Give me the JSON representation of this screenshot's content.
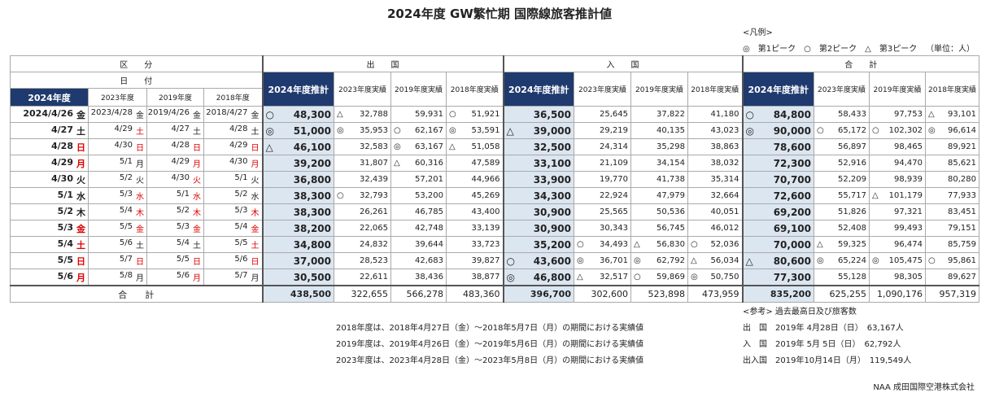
{
  "title": "2024年度 GW繁忙期 国際線旅客推計値",
  "legend": {
    "label": "<凡例>",
    "items": "◎　第1ピーク　○　第2ピーク　△　第3ピーク",
    "unit": "（単位：人）"
  },
  "table": {
    "header": {
      "section": "区　　分",
      "date": "日　　付",
      "years": [
        "2024年度",
        "2023年度",
        "2019年度",
        "2018年度"
      ],
      "groups": [
        "出　　国",
        "入　　国",
        "合　　計"
      ],
      "columns": [
        "2024年度推計",
        "2023年度実績",
        "2019年度実績",
        "2018年度実績"
      ]
    },
    "rows": [
      {
        "dates": [
          {
            "date": "2024/4/26",
            "day": "金"
          },
          {
            "date": "2023/4/28",
            "day": "金"
          },
          {
            "date": "2019/4/26",
            "day": "金"
          },
          {
            "date": "2018/4/27",
            "day": "金"
          }
        ],
        "values": [
          {
            "mark": "○",
            "value": "48,300"
          },
          {
            "mark": "△",
            "value": "32,788"
          },
          {
            "value": "59,931"
          },
          {
            "mark": "○",
            "value": "51,921"
          },
          {
            "value": "36,500"
          },
          {
            "value": "25,645"
          },
          {
            "value": "37,822"
          },
          {
            "value": "41,180"
          },
          {
            "mark": "○",
            "value": "84,800"
          },
          {
            "value": "58,433"
          },
          {
            "value": "97,753"
          },
          {
            "mark": "△",
            "value": "93,101"
          }
        ]
      },
      {
        "dates": [
          {
            "date": "4/27",
            "day": "土"
          },
          {
            "date": "4/29",
            "day": "土",
            "holiday": true
          },
          {
            "date": "4/27",
            "day": "土"
          },
          {
            "date": "4/28",
            "day": "土"
          }
        ],
        "values": [
          {
            "mark": "◎",
            "value": "51,000"
          },
          {
            "mark": "◎",
            "value": "35,953"
          },
          {
            "mark": "○",
            "value": "62,167"
          },
          {
            "mark": "◎",
            "value": "53,591"
          },
          {
            "mark": "△",
            "value": "39,000"
          },
          {
            "value": "29,219"
          },
          {
            "value": "40,135"
          },
          {
            "value": "43,023"
          },
          {
            "mark": "◎",
            "value": "90,000"
          },
          {
            "mark": "○",
            "value": "65,172"
          },
          {
            "mark": "○",
            "value": "102,302"
          },
          {
            "mark": "◎",
            "value": "96,614"
          }
        ]
      },
      {
        "dates": [
          {
            "date": "4/28",
            "day": "日",
            "holiday": true
          },
          {
            "date": "4/30",
            "day": "日",
            "holiday": true
          },
          {
            "date": "4/28",
            "day": "日",
            "holiday": true
          },
          {
            "date": "4/29",
            "day": "日",
            "holiday": true
          }
        ],
        "values": [
          {
            "mark": "△",
            "value": "46,100"
          },
          {
            "value": "32,583"
          },
          {
            "mark": "◎",
            "value": "63,167"
          },
          {
            "mark": "△",
            "value": "51,058"
          },
          {
            "value": "32,500"
          },
          {
            "value": "24,314"
          },
          {
            "value": "35,298"
          },
          {
            "value": "38,863"
          },
          {
            "value": "78,600"
          },
          {
            "value": "56,897"
          },
          {
            "value": "98,465"
          },
          {
            "value": "89,921"
          }
        ]
      },
      {
        "dates": [
          {
            "date": "4/29",
            "day": "月",
            "holiday": true
          },
          {
            "date": "5/1",
            "day": "月"
          },
          {
            "date": "4/29",
            "day": "月",
            "holiday": true
          },
          {
            "date": "4/30",
            "day": "月",
            "holiday": true
          }
        ],
        "values": [
          {
            "value": "39,200"
          },
          {
            "value": "31,807"
          },
          {
            "mark": "△",
            "value": "60,316"
          },
          {
            "value": "47,589"
          },
          {
            "value": "33,100"
          },
          {
            "value": "21,109"
          },
          {
            "value": "34,154"
          },
          {
            "value": "38,032"
          },
          {
            "value": "72,300"
          },
          {
            "value": "52,916"
          },
          {
            "value": "94,470"
          },
          {
            "value": "85,621"
          }
        ]
      },
      {
        "dates": [
          {
            "date": "4/30",
            "day": "火"
          },
          {
            "date": "5/2",
            "day": "火"
          },
          {
            "date": "4/30",
            "day": "火",
            "holiday": true
          },
          {
            "date": "5/1",
            "day": "火"
          }
        ],
        "values": [
          {
            "value": "36,800"
          },
          {
            "value": "32,439"
          },
          {
            "value": "57,201"
          },
          {
            "value": "44,966"
          },
          {
            "value": "33,900"
          },
          {
            "value": "19,770"
          },
          {
            "value": "41,738"
          },
          {
            "value": "35,314"
          },
          {
            "value": "70,700"
          },
          {
            "value": "52,209"
          },
          {
            "value": "98,939"
          },
          {
            "value": "80,280"
          }
        ]
      },
      {
        "dates": [
          {
            "date": "5/1",
            "day": "水"
          },
          {
            "date": "5/3",
            "day": "水",
            "holiday": true
          },
          {
            "date": "5/1",
            "day": "水",
            "holiday": true
          },
          {
            "date": "5/2",
            "day": "水"
          }
        ],
        "values": [
          {
            "value": "38,300"
          },
          {
            "mark": "○",
            "value": "32,793"
          },
          {
            "value": "53,200"
          },
          {
            "value": "45,269"
          },
          {
            "value": "34,300"
          },
          {
            "value": "22,924"
          },
          {
            "value": "47,979"
          },
          {
            "value": "32,664"
          },
          {
            "value": "72,600"
          },
          {
            "value": "55,717"
          },
          {
            "mark": "△",
            "value": "101,179"
          },
          {
            "value": "77,933"
          }
        ]
      },
      {
        "dates": [
          {
            "date": "5/2",
            "day": "木"
          },
          {
            "date": "5/4",
            "day": "木",
            "holiday": true
          },
          {
            "date": "5/2",
            "day": "木",
            "holiday": true
          },
          {
            "date": "5/3",
            "day": "木",
            "holiday": true
          }
        ],
        "values": [
          {
            "value": "38,300"
          },
          {
            "value": "26,261"
          },
          {
            "value": "46,785"
          },
          {
            "value": "43,400"
          },
          {
            "value": "30,900"
          },
          {
            "value": "25,565"
          },
          {
            "value": "50,536"
          },
          {
            "value": "40,051"
          },
          {
            "value": "69,200"
          },
          {
            "value": "51,826"
          },
          {
            "value": "97,321"
          },
          {
            "value": "83,451"
          }
        ]
      },
      {
        "dates": [
          {
            "date": "5/3",
            "day": "金",
            "holiday": true
          },
          {
            "date": "5/5",
            "day": "金",
            "holiday": true
          },
          {
            "date": "5/3",
            "day": "金",
            "holiday": true
          },
          {
            "date": "5/4",
            "day": "金",
            "holiday": true
          }
        ],
        "values": [
          {
            "value": "38,200"
          },
          {
            "value": "22,065"
          },
          {
            "value": "42,748"
          },
          {
            "value": "33,139"
          },
          {
            "value": "30,900"
          },
          {
            "value": "30,343"
          },
          {
            "value": "56,745"
          },
          {
            "value": "46,012"
          },
          {
            "value": "69,100"
          },
          {
            "value": "52,408"
          },
          {
            "value": "99,493"
          },
          {
            "value": "79,151"
          }
        ]
      },
      {
        "dates": [
          {
            "date": "5/4",
            "day": "土",
            "holiday": true
          },
          {
            "date": "5/6",
            "day": "土"
          },
          {
            "date": "5/4",
            "day": "土"
          },
          {
            "date": "5/5",
            "day": "土",
            "holiday": true
          }
        ],
        "values": [
          {
            "value": "34,800"
          },
          {
            "value": "24,832"
          },
          {
            "value": "39,644"
          },
          {
            "value": "33,723"
          },
          {
            "value": "35,200"
          },
          {
            "mark": "○",
            "value": "34,493"
          },
          {
            "mark": "△",
            "value": "56,830"
          },
          {
            "mark": "○",
            "value": "52,036"
          },
          {
            "value": "70,000"
          },
          {
            "mark": "△",
            "value": "59,325"
          },
          {
            "value": "96,474"
          },
          {
            "value": "85,759"
          }
        ]
      },
      {
        "dates": [
          {
            "date": "5/5",
            "day": "日",
            "holiday": true
          },
          {
            "date": "5/7",
            "day": "日",
            "holiday": true
          },
          {
            "date": "5/5",
            "day": "日",
            "holiday": true
          },
          {
            "date": "5/6",
            "day": "日",
            "holiday": true
          }
        ],
        "values": [
          {
            "value": "37,000"
          },
          {
            "value": "28,523"
          },
          {
            "value": "42,683"
          },
          {
            "value": "39,827"
          },
          {
            "mark": "○",
            "value": "43,600"
          },
          {
            "mark": "◎",
            "value": "36,701"
          },
          {
            "mark": "◎",
            "value": "62,792"
          },
          {
            "mark": "△",
            "value": "56,034"
          },
          {
            "mark": "△",
            "value": "80,600"
          },
          {
            "mark": "◎",
            "value": "65,224"
          },
          {
            "mark": "◎",
            "value": "105,475"
          },
          {
            "mark": "○",
            "value": "95,861"
          }
        ]
      },
      {
        "dates": [
          {
            "date": "5/6",
            "day": "月",
            "holiday": true
          },
          {
            "date": "5/8",
            "day": "月"
          },
          {
            "date": "5/6",
            "day": "月",
            "holiday": true
          },
          {
            "date": "5/7",
            "day": "月"
          }
        ],
        "values": [
          {
            "value": "30,500"
          },
          {
            "value": "22,611"
          },
          {
            "value": "38,436"
          },
          {
            "value": "38,877"
          },
          {
            "mark": "◎",
            "value": "46,800"
          },
          {
            "mark": "△",
            "value": "32,517"
          },
          {
            "mark": "○",
            "value": "59,869"
          },
          {
            "mark": "◎",
            "value": "50,750"
          },
          {
            "value": "77,300"
          },
          {
            "value": "55,128"
          },
          {
            "value": "98,305"
          },
          {
            "value": "89,627"
          }
        ]
      }
    ],
    "total": {
      "label": "合　　計",
      "values": [
        "438,500",
        "322,655",
        "566,278",
        "483,360",
        "396,700",
        "302,600",
        "523,898",
        "473,959",
        "835,200",
        "625,255",
        "1,090,176",
        "957,319"
      ]
    }
  },
  "notes": [
    "2018年度は、2018年4月27日（金）～2018年5月7日（月）の期間における実績値",
    "2019年度は、2019年4月26日（金）～2019年5月6日（月）の期間における実績値",
    "2023年度は、2023年4月28日（金）～2023年5月8日（月）の期間における実績値"
  ],
  "reference": {
    "title": "<参考> 過去最高日及び旅客数",
    "lines": [
      "出　国　2019年 4月28日（日）　63,167人",
      "入　国　2019年 5月 5日（日）　62,792人",
      "出入国　2019年10月14日（月）　119,549人"
    ]
  },
  "footer": "NAA 成田国際空港株式会社"
}
